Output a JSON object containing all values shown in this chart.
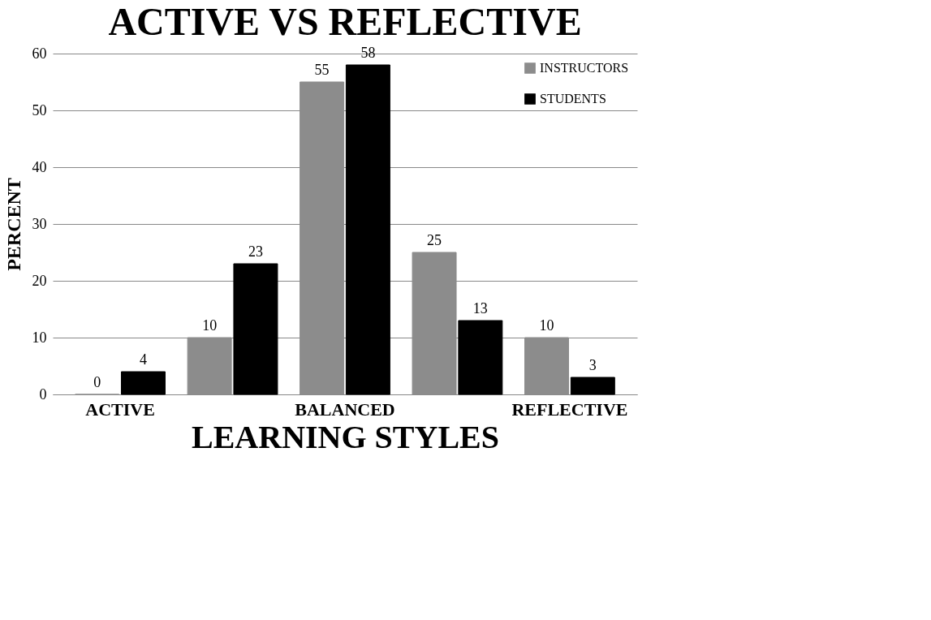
{
  "chart_data": {
    "type": "bar",
    "title": "ACTIVE VS REFLECTIVE",
    "xlabel": "LEARNING STYLES",
    "ylabel": "PERCENT",
    "categories": [
      "ACTIVE",
      null,
      "BALANCED",
      null,
      "REFLECTIVE"
    ],
    "series": [
      {
        "name": "INSTRUCTORS",
        "color": "#8c8c8c",
        "values": [
          0,
          10,
          55,
          25,
          10
        ]
      },
      {
        "name": "STUDENTS",
        "color": "#000000",
        "values": [
          4,
          23,
          58,
          13,
          3
        ]
      }
    ],
    "ylim": [
      0,
      60
    ],
    "yticks": [
      0,
      10,
      20,
      30,
      40,
      50,
      60
    ],
    "grid": "y",
    "legend": "top right",
    "data_labels": true
  }
}
